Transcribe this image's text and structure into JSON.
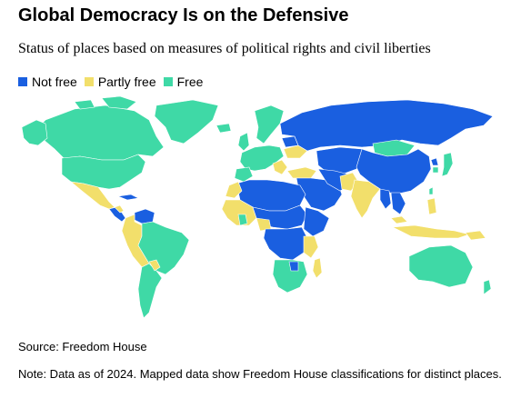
{
  "header": {
    "title": "Global Democracy Is on the Defensive",
    "subtitle": "Status of places based on measures of political rights and civil liberties"
  },
  "legend": {
    "items": [
      {
        "label": "Not free",
        "color": "#1a5fe0"
      },
      {
        "label": "Partly free",
        "color": "#f2df6b"
      },
      {
        "label": "Free",
        "color": "#3fd9a6"
      }
    ]
  },
  "map": {
    "colors": {
      "not_free": "#1a5fe0",
      "partly_free": "#f2df6b",
      "free": "#3fd9a6",
      "border": "#ffffff"
    }
  },
  "footer": {
    "source": "Source: Freedom House",
    "note": "Note: Data as of 2024. Mapped data show Freedom House classifications for distinct places."
  }
}
